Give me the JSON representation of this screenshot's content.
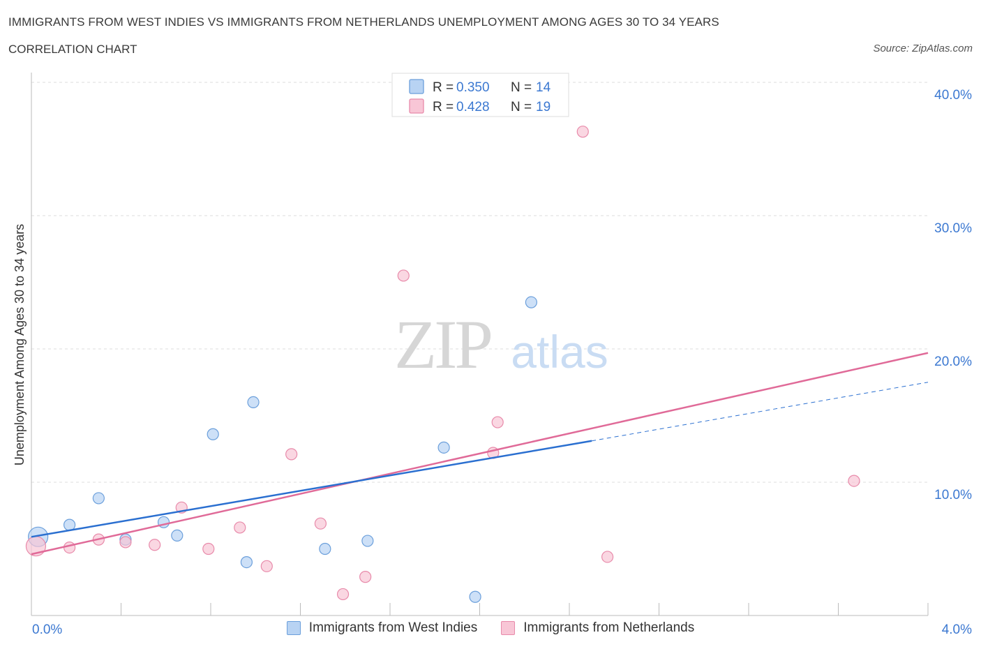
{
  "header": {
    "title": "IMMIGRANTS FROM WEST INDIES VS IMMIGRANTS FROM NETHERLANDS UNEMPLOYMENT AMONG AGES 30 TO 34 YEARS",
    "subtitle": "CORRELATION CHART",
    "source": "Source: ZipAtlas.com"
  },
  "watermark": {
    "zip": "ZIP",
    "atlas": "atlas"
  },
  "colors": {
    "blue_fill": "#b8d3f3",
    "blue_stroke": "#6b9fdb",
    "blue_line": "#2a6fd0",
    "pink_fill": "#f8c6d6",
    "pink_stroke": "#e88aaa",
    "pink_line": "#e06a98",
    "axis_label": "#3b78d1",
    "grid": "#dddddd"
  },
  "legend_top": [
    {
      "r_label": "R =",
      "r_value": "0.350",
      "n_label": "N =",
      "n_value": "14"
    },
    {
      "r_label": "R =",
      "r_value": "0.428",
      "n_label": "N =",
      "n_value": "19"
    }
  ],
  "legend_bottom": [
    "Immigrants from West Indies",
    "Immigrants from Netherlands"
  ],
  "chart_data": {
    "type": "scatter",
    "title": "IMMIGRANTS FROM WEST INDIES VS IMMIGRANTS FROM NETHERLANDS UNEMPLOYMENT AMONG AGES 30 TO 34 YEARS",
    "subtitle": "CORRELATION CHART",
    "xlabel": "",
    "ylabel": "Unemployment Among Ages 30 to 34 years",
    "xlim": [
      0,
      4.0
    ],
    "ylim": [
      0,
      40.0
    ],
    "x_tick_labels": [
      "0.0%",
      "4.0%"
    ],
    "y_ticks": [
      10,
      20,
      30,
      40
    ],
    "y_tick_labels": [
      "10.0%",
      "20.0%",
      "30.0%",
      "40.0%"
    ],
    "grid": true,
    "legend_position": "top-center",
    "series": [
      {
        "name": "Immigrants from West Indies",
        "color": "#6b9fdb",
        "points": [
          {
            "x": 0.03,
            "y": 5.9,
            "size": "large"
          },
          {
            "x": 0.17,
            "y": 6.8
          },
          {
            "x": 0.3,
            "y": 8.8
          },
          {
            "x": 0.42,
            "y": 5.7
          },
          {
            "x": 0.59,
            "y": 7.0
          },
          {
            "x": 0.65,
            "y": 6.0
          },
          {
            "x": 0.81,
            "y": 13.6
          },
          {
            "x": 0.99,
            "y": 16.0
          },
          {
            "x": 0.96,
            "y": 4.0
          },
          {
            "x": 1.31,
            "y": 5.0
          },
          {
            "x": 1.5,
            "y": 5.6
          },
          {
            "x": 1.84,
            "y": 12.6
          },
          {
            "x": 1.98,
            "y": 1.4
          },
          {
            "x": 2.23,
            "y": 23.5
          }
        ],
        "trend": {
          "x0": 0.0,
          "y0": 5.9,
          "x1": 2.5,
          "y1": 13.1,
          "dashed_to_x": 4.0,
          "dashed_to_y": 17.5
        }
      },
      {
        "name": "Immigrants from Netherlands",
        "color": "#e88aaa",
        "points": [
          {
            "x": 0.02,
            "y": 5.2,
            "size": "large"
          },
          {
            "x": 0.17,
            "y": 5.1
          },
          {
            "x": 0.3,
            "y": 5.7
          },
          {
            "x": 0.42,
            "y": 5.5
          },
          {
            "x": 0.55,
            "y": 5.3
          },
          {
            "x": 0.67,
            "y": 8.1
          },
          {
            "x": 0.79,
            "y": 5.0
          },
          {
            "x": 0.93,
            "y": 6.6
          },
          {
            "x": 1.05,
            "y": 3.7
          },
          {
            "x": 1.16,
            "y": 12.1
          },
          {
            "x": 1.29,
            "y": 6.9
          },
          {
            "x": 1.39,
            "y": 1.6
          },
          {
            "x": 1.49,
            "y": 2.9
          },
          {
            "x": 1.66,
            "y": 25.5
          },
          {
            "x": 2.06,
            "y": 12.2
          },
          {
            "x": 2.08,
            "y": 14.5
          },
          {
            "x": 2.46,
            "y": 36.3
          },
          {
            "x": 2.57,
            "y": 4.4
          },
          {
            "x": 3.67,
            "y": 10.1
          }
        ],
        "trend": {
          "x0": 0.0,
          "y0": 4.6,
          "x1": 4.0,
          "y1": 19.7
        }
      }
    ]
  }
}
